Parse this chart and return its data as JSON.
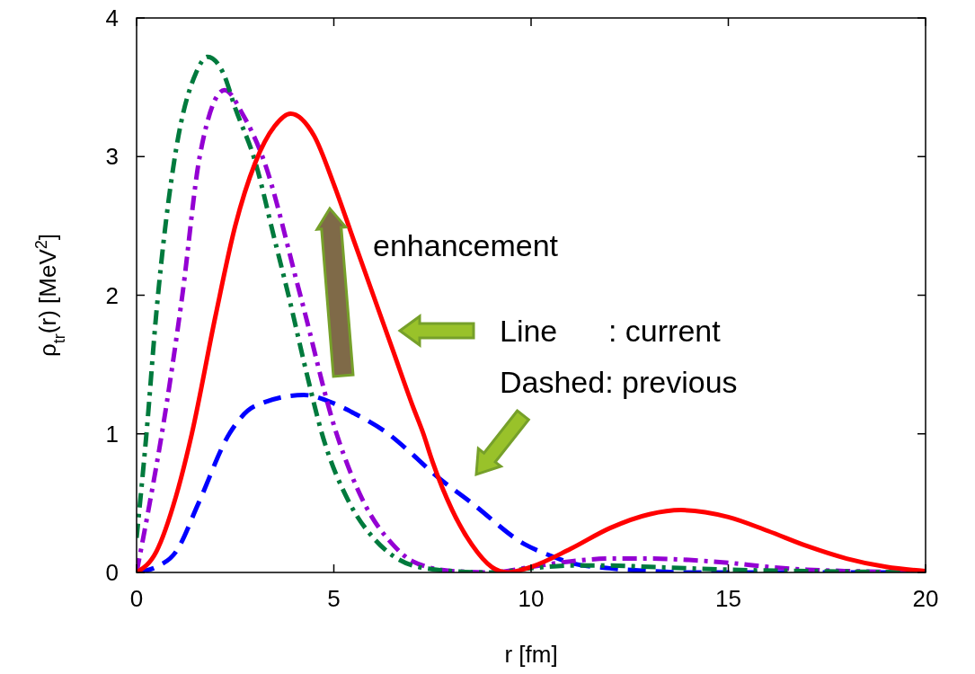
{
  "chart_data": {
    "type": "line",
    "xlabel": "r [fm]",
    "ylabel": "ρ$_{tr}$(r) [MeV$^{2}$]",
    "xlim": [
      0,
      20
    ],
    "ylim": [
      0,
      4
    ],
    "xticks": [
      0,
      5,
      10,
      15,
      20
    ],
    "yticks": [
      0,
      1,
      2,
      3,
      4
    ],
    "annotations": [
      "enhancement",
      "Line      : current",
      "Dashed: previous"
    ],
    "series": [
      {
        "color": "#0000ff",
        "line_style": "dashed",
        "x": [
          0,
          0.5,
          1,
          1.57,
          2.35,
          3,
          4.24,
          5,
          5.5,
          6.38,
          7,
          7.5,
          8.5,
          9.86,
          10.5,
          11,
          12,
          13,
          14,
          20
        ],
        "values": [
          0,
          0.04,
          0.15,
          0.5,
          1.0,
          1.2,
          1.28,
          1.22,
          1.15,
          1.0,
          0.85,
          0.72,
          0.5,
          0.2,
          0.12,
          0.07,
          0.03,
          0.01,
          0,
          0
        ]
      },
      {
        "color": "#9400d3",
        "line_style": "dotted",
        "x": [
          0,
          0.3,
          0.64,
          1.16,
          1.6,
          2.23,
          2.7,
          3.19,
          4.15,
          5.07,
          5.77,
          6.5,
          7,
          8,
          9,
          10,
          11,
          12,
          13,
          14,
          15,
          16,
          17,
          18,
          20
        ],
        "values": [
          0,
          0.45,
          1.0,
          2.0,
          3.0,
          3.48,
          3.3,
          3.0,
          2.0,
          1.0,
          0.5,
          0.2,
          0.08,
          0.01,
          0,
          0.04,
          0.08,
          0.1,
          0.1,
          0.09,
          0.07,
          0.04,
          0.02,
          0.01,
          0
        ]
      },
      {
        "color": "#007a3d",
        "line_style": "dotted",
        "x": [
          0,
          0.25,
          0.5,
          1,
          1.5,
          1.8,
          2.2,
          2.5,
          3,
          3.5,
          3.85,
          4.3,
          4.7,
          5.4,
          6,
          6.5,
          7,
          8,
          9,
          10,
          11,
          12,
          13,
          14,
          15,
          17,
          20
        ],
        "values": [
          0.25,
          1.0,
          1.87,
          3.05,
          3.6,
          3.72,
          3.6,
          3.35,
          2.97,
          2.4,
          2.0,
          1.45,
          1.0,
          0.5,
          0.25,
          0.12,
          0.05,
          0.01,
          0,
          0.03,
          0.05,
          0.05,
          0.04,
          0.03,
          0.02,
          0.01,
          0
        ]
      },
      {
        "color": "#ff0000",
        "line_style": "solid",
        "x": [
          0,
          0.5,
          1,
          1.4,
          2,
          2.5,
          3,
          3.5,
          3.9,
          4.5,
          5,
          5.5,
          6,
          6.5,
          7,
          7.27,
          7.5,
          8,
          8.5,
          9,
          9.4,
          10,
          11,
          12,
          13,
          13.8,
          15,
          16,
          17,
          18,
          19,
          20
        ],
        "values": [
          0,
          0.15,
          0.55,
          1.0,
          1.85,
          2.5,
          2.95,
          3.22,
          3.31,
          3.15,
          2.8,
          2.4,
          2.0,
          1.6,
          1.2,
          1.0,
          0.8,
          0.45,
          0.2,
          0.04,
          0,
          0.04,
          0.17,
          0.32,
          0.42,
          0.45,
          0.4,
          0.3,
          0.19,
          0.1,
          0.04,
          0.01
        ]
      }
    ]
  }
}
